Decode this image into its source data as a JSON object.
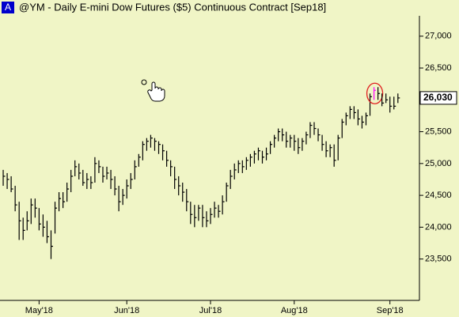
{
  "chart_data": {
    "type": "hlc",
    "badge": "A",
    "title": "@YM - Daily  E-mini Dow Futures ($5) Continuous Contract [Sep18]",
    "color": "#000000",
    "highlight": {
      "index": 93,
      "color": "#ff00ff",
      "ring": "#e02020"
    },
    "ylim": [
      22850,
      27320
    ],
    "xlim": [
      -0.8,
      104.4
    ],
    "yticks": [
      {
        "value": 27000,
        "label": "27,000"
      },
      {
        "value": 26500,
        "label": "26,500"
      },
      {
        "value": 25500,
        "label": "25,500"
      },
      {
        "value": 25000,
        "label": "25,000"
      },
      {
        "value": 24500,
        "label": "24,500"
      },
      {
        "value": 24000,
        "label": "24,000"
      },
      {
        "value": 23500,
        "label": "23,500"
      }
    ],
    "xticks": [
      {
        "value": 9,
        "label": "May'18"
      },
      {
        "value": 31,
        "label": "Jun'18"
      },
      {
        "value": 52,
        "label": "Jul'18"
      },
      {
        "value": 73,
        "label": "Aug'18"
      },
      {
        "value": 97,
        "label": "Sep'18"
      }
    ],
    "last_price": {
      "value": 26030,
      "label": "26,030"
    },
    "high": [
      24900,
      24850,
      24800,
      24650,
      24400,
      24150,
      24250,
      24450,
      24450,
      24300,
      24200,
      24100,
      23950,
      24400,
      24550,
      24550,
      24700,
      24900,
      25050,
      25000,
      24900,
      24850,
      24800,
      25100,
      25050,
      24950,
      24950,
      24900,
      24800,
      24650,
      24600,
      24750,
      24850,
      25050,
      25150,
      25350,
      25400,
      25450,
      25400,
      25350,
      25300,
      25200,
      25050,
      24950,
      24800,
      24700,
      24600,
      24400,
      24350,
      24350,
      24350,
      24250,
      24300,
      24400,
      24350,
      24500,
      24700,
      24900,
      25000,
      25050,
      25050,
      25100,
      25150,
      25200,
      25250,
      25200,
      25250,
      25350,
      25450,
      25550,
      25550,
      25500,
      25450,
      25450,
      25400,
      25400,
      25500,
      25650,
      25650,
      25550,
      25450,
      25350,
      25300,
      25300,
      25450,
      25700,
      25800,
      25900,
      25900,
      25850,
      25750,
      25800,
      26100,
      26200,
      26200,
      26100,
      26100,
      26050,
      26050,
      26100
    ],
    "low": [
      24650,
      24600,
      24550,
      24250,
      23800,
      23800,
      23950,
      24050,
      24150,
      23950,
      23850,
      23750,
      23500,
      23900,
      24250,
      24300,
      24400,
      24550,
      24800,
      24750,
      24650,
      24600,
      24600,
      24700,
      24850,
      24700,
      24750,
      24600,
      24500,
      24250,
      24350,
      24450,
      24600,
      24750,
      24950,
      25050,
      25200,
      25250,
      25200,
      25150,
      25050,
      24950,
      24800,
      24600,
      24500,
      24400,
      24250,
      24050,
      24000,
      24100,
      24000,
      24000,
      24050,
      24150,
      24150,
      24200,
      24400,
      24600,
      24750,
      24850,
      24850,
      24900,
      24950,
      25000,
      25050,
      25000,
      25050,
      25150,
      25250,
      25350,
      25350,
      25250,
      25250,
      25200,
      25150,
      25200,
      25300,
      25400,
      25450,
      25350,
      25200,
      25100,
      25100,
      24950,
      25050,
      25400,
      25600,
      25700,
      25700,
      25600,
      25550,
      25600,
      25750,
      26000,
      26000,
      25900,
      25950,
      25800,
      25850,
      25950
    ],
    "close": [
      24800,
      24750,
      24600,
      24350,
      24100,
      23950,
      24100,
      24350,
      24300,
      24050,
      24000,
      23850,
      23700,
      24300,
      24450,
      24400,
      24600,
      24800,
      24950,
      24850,
      24700,
      24750,
      24700,
      25000,
      24950,
      24800,
      24850,
      24750,
      24600,
      24400,
      24500,
      24650,
      24750,
      24950,
      25100,
      25300,
      25350,
      25400,
      25350,
      25300,
      25200,
      25050,
      24950,
      24750,
      24650,
      24550,
      24400,
      24200,
      24150,
      24300,
      24150,
      24100,
      24200,
      24300,
      24250,
      24400,
      24650,
      24800,
      24900,
      25000,
      24950,
      25050,
      25100,
      25150,
      25200,
      25100,
      25150,
      25300,
      25400,
      25500,
      25450,
      25350,
      25400,
      25350,
      25250,
      25350,
      25450,
      25600,
      25550,
      25450,
      25300,
      25200,
      25250,
      25050,
      25400,
      25650,
      25750,
      25850,
      25800,
      25700,
      25650,
      25750,
      26050,
      26150,
      26100,
      25950,
      26000,
      25900,
      25900,
      26030
    ]
  }
}
